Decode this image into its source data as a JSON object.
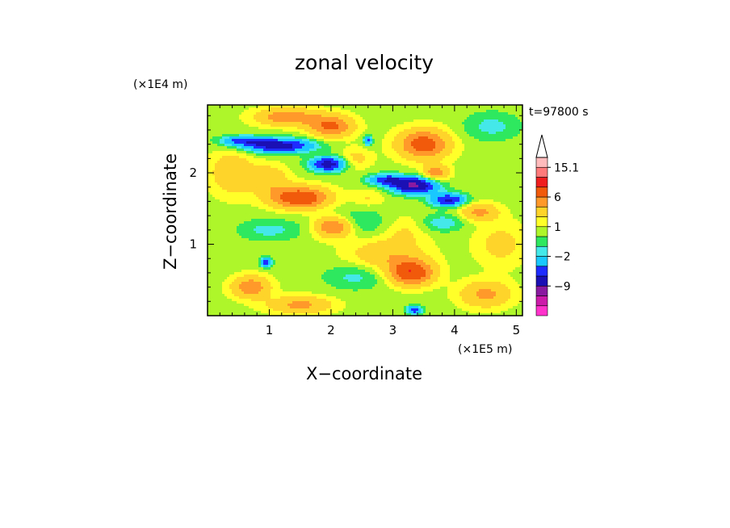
{
  "chart_data": {
    "type": "heatmap",
    "title": "zonal velocity",
    "xlabel": "X−coordinate",
    "ylabel": "Z−coordinate",
    "x_unit": "(×1E5 m)",
    "y_unit": "(×1E4 m)",
    "time_label": "t=97800 s",
    "xlim": [
      0,
      5.1
    ],
    "ylim": [
      0,
      2.95
    ],
    "x_ticks": [
      "1",
      "2",
      "3",
      "4",
      "5"
    ],
    "y_ticks": [
      "1",
      "2"
    ],
    "colorbar": {
      "levels": [
        -15,
        -12,
        -9,
        -6,
        -4,
        -2,
        -1,
        0,
        1,
        2,
        4,
        6,
        9,
        12,
        15.1
      ],
      "colors": [
        "#ff33cc",
        "#cc1aaa",
        "#8a1aa0",
        "#1a10b4",
        "#1f2cff",
        "#19c8ff",
        "#44e8e8",
        "#2ee860",
        "#aef52a",
        "#ffff2a",
        "#ffd42a",
        "#ff9a2a",
        "#f05a0a",
        "#f01e1e",
        "#ff7a7a",
        "#ffbbbb"
      ],
      "labels": [
        "15.1",
        "6",
        "1",
        "−2",
        "−9"
      ],
      "extend_max": true
    },
    "features": [
      {
        "x": 1.15,
        "z": 2.38,
        "value": -8,
        "sx": 0.55,
        "sz": 0.1
      },
      {
        "x": 1.95,
        "z": 2.12,
        "value": -8,
        "sx": 0.28,
        "sz": 0.1
      },
      {
        "x": 0.55,
        "z": 2.45,
        "value": -5,
        "sx": 0.35,
        "sz": 0.07
      },
      {
        "x": 3.35,
        "z": 1.82,
        "value": -10,
        "sx": 0.35,
        "sz": 0.11
      },
      {
        "x": 3.9,
        "z": 1.62,
        "value": -7,
        "sx": 0.28,
        "sz": 0.09
      },
      {
        "x": 2.9,
        "z": 1.9,
        "value": -6,
        "sx": 0.3,
        "sz": 0.08
      },
      {
        "x": 0.95,
        "z": 0.75,
        "value": -6,
        "sx": 0.09,
        "sz": 0.07
      },
      {
        "x": 3.35,
        "z": 0.08,
        "value": -6,
        "sx": 0.12,
        "sz": 0.06
      },
      {
        "x": 2.6,
        "z": 2.45,
        "value": -5,
        "sx": 0.07,
        "sz": 0.07
      },
      {
        "x": 2.3,
        "z": 1.3,
        "value": -2.5,
        "sx": 0.55,
        "sz": 0.18
      },
      {
        "x": 3.8,
        "z": 1.3,
        "value": -2.5,
        "sx": 0.35,
        "sz": 0.12
      },
      {
        "x": 4.6,
        "z": 2.65,
        "value": -2,
        "sx": 0.45,
        "sz": 0.2
      },
      {
        "x": 2.4,
        "z": 0.55,
        "value": -2,
        "sx": 0.5,
        "sz": 0.18
      },
      {
        "x": 1.0,
        "z": 1.2,
        "value": -2,
        "sx": 0.5,
        "sz": 0.15
      },
      {
        "x": 1.5,
        "z": 1.65,
        "value": 8,
        "sx": 0.45,
        "sz": 0.15
      },
      {
        "x": 2.05,
        "z": 1.25,
        "value": 7,
        "sx": 0.32,
        "sz": 0.15
      },
      {
        "x": 3.3,
        "z": 0.6,
        "value": 8,
        "sx": 0.35,
        "sz": 0.17
      },
      {
        "x": 3.5,
        "z": 2.4,
        "value": 7,
        "sx": 0.4,
        "sz": 0.2
      },
      {
        "x": 2.0,
        "z": 2.65,
        "value": 6,
        "sx": 0.35,
        "sz": 0.15
      },
      {
        "x": 1.3,
        "z": 2.78,
        "value": 5,
        "sx": 0.5,
        "sz": 0.12
      },
      {
        "x": 3.7,
        "z": 2.0,
        "value": 5,
        "sx": 0.2,
        "sz": 0.1
      },
      {
        "x": 4.4,
        "z": 1.45,
        "value": 4,
        "sx": 0.3,
        "sz": 0.12
      },
      {
        "x": 4.5,
        "z": 0.3,
        "value": 4,
        "sx": 0.4,
        "sz": 0.18
      },
      {
        "x": 0.7,
        "z": 0.4,
        "value": 5,
        "sx": 0.3,
        "sz": 0.15
      },
      {
        "x": 1.5,
        "z": 0.15,
        "value": 4,
        "sx": 0.5,
        "sz": 0.12
      },
      {
        "x": 2.9,
        "z": 0.85,
        "value": 3,
        "sx": 0.6,
        "sz": 0.22
      },
      {
        "x": 0.4,
        "z": 2.0,
        "value": 3,
        "sx": 0.35,
        "sz": 0.3
      },
      {
        "x": 1.0,
        "z": 1.9,
        "value": 3,
        "sx": 0.3,
        "sz": 0.2
      },
      {
        "x": 3.2,
        "z": 1.2,
        "value": 1.5,
        "sx": 0.35,
        "sz": 0.2
      },
      {
        "x": 4.75,
        "z": 1.0,
        "value": 2,
        "sx": 0.4,
        "sz": 0.3
      },
      {
        "x": 2.6,
        "z": 1.65,
        "value": 1.5,
        "sx": 0.25,
        "sz": 0.12
      },
      {
        "x": 2.4,
        "z": 2.2,
        "value": 2,
        "sx": 0.25,
        "sz": 0.15
      }
    ]
  }
}
